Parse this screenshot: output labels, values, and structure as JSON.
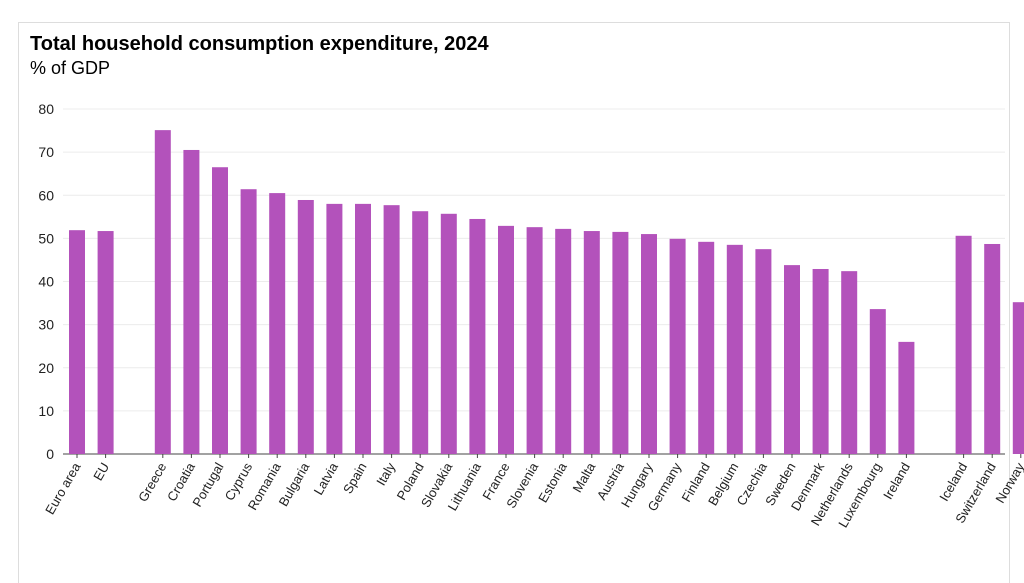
{
  "chart_data": {
    "type": "bar",
    "title": "Total household consumption expenditure, 2024",
    "subtitle": "% of GDP",
    "xlabel": "",
    "ylabel": "",
    "ylim": [
      0,
      80
    ],
    "yticks": [
      "0",
      "10",
      "20",
      "30",
      "40",
      "50",
      "60",
      "70",
      "80"
    ],
    "grid": true,
    "bar_color": "#b352bb",
    "groups": [
      [
        "Euro area",
        "EU"
      ],
      [
        "Greece",
        "Croatia",
        "Portugal",
        "Cyprus",
        "Romania",
        "Bulgaria",
        "Latvia",
        "Spain",
        "Italy",
        "Poland",
        "Slovakia",
        "Lithuania",
        "France",
        "Slovenia",
        "Estonia",
        "Malta",
        "Austria",
        "Hungary",
        "Germany",
        "Finland",
        "Belgium",
        "Czechia",
        "Sweden",
        "Denmark",
        "Netherlands",
        "Luxembourg",
        "Ireland"
      ],
      [
        "Iceland",
        "Switzerland",
        "Norway"
      ]
    ],
    "categories": [
      "Euro area",
      "EU",
      "Greece",
      "Croatia",
      "Portugal",
      "Cyprus",
      "Romania",
      "Bulgaria",
      "Latvia",
      "Spain",
      "Italy",
      "Poland",
      "Slovakia",
      "Lithuania",
      "France",
      "Slovenia",
      "Estonia",
      "Malta",
      "Austria",
      "Hungary",
      "Germany",
      "Finland",
      "Belgium",
      "Czechia",
      "Sweden",
      "Denmark",
      "Netherlands",
      "Luxembourg",
      "Ireland",
      "Iceland",
      "Switzerland",
      "Norway"
    ],
    "values": [
      51.9,
      51.7,
      75.1,
      70.5,
      66.5,
      61.4,
      60.5,
      58.9,
      58.0,
      58.0,
      57.7,
      56.3,
      55.7,
      54.5,
      52.9,
      52.6,
      52.2,
      51.7,
      51.5,
      51.0,
      49.9,
      49.2,
      48.5,
      47.5,
      43.8,
      42.9,
      42.4,
      33.6,
      26.0,
      50.6,
      48.7,
      35.2
    ]
  }
}
